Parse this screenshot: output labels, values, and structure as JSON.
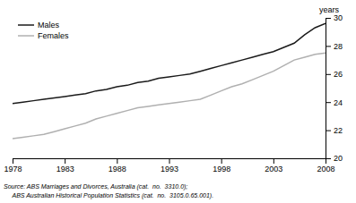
{
  "chart_data": {
    "type": "line",
    "ylabel": "years",
    "annotations": [
      "Source: ABS Marriages and Divorces, Australia (cat.  no.  3310.0);",
      "     ABS Australian Historical Population Statistics (cat.  no.  3105.0.65.001)."
    ],
    "x": [
      1978,
      1979,
      1980,
      1981,
      1982,
      1983,
      1984,
      1985,
      1986,
      1987,
      1988,
      1989,
      1990,
      1991,
      1992,
      1993,
      1994,
      1995,
      1996,
      1997,
      1998,
      1999,
      2000,
      2001,
      2002,
      2003,
      2004,
      2005,
      2006,
      2007,
      2008
    ],
    "series": [
      {
        "name": "Males",
        "color": "#1a1a1a",
        "values": [
          23.9,
          24.0,
          24.1,
          24.2,
          24.3,
          24.4,
          24.5,
          24.6,
          24.8,
          24.9,
          25.1,
          25.2,
          25.4,
          25.5,
          25.7,
          25.8,
          25.9,
          26.0,
          26.2,
          26.4,
          26.6,
          26.8,
          27.0,
          27.2,
          27.4,
          27.6,
          27.9,
          28.2,
          28.8,
          29.3,
          29.6
        ]
      },
      {
        "name": "Females",
        "color": "#b0b0b0",
        "values": [
          21.4,
          21.5,
          21.6,
          21.7,
          21.9,
          22.1,
          22.3,
          22.5,
          22.8,
          23.0,
          23.2,
          23.4,
          23.6,
          23.7,
          23.8,
          23.9,
          24.0,
          24.1,
          24.2,
          24.5,
          24.8,
          25.1,
          25.3,
          25.6,
          25.9,
          26.2,
          26.6,
          27.0,
          27.2,
          27.4,
          27.5
        ]
      }
    ],
    "xlim": [
      1978,
      2008
    ],
    "ylim": [
      20,
      30
    ],
    "xticks": [
      1978,
      1983,
      1988,
      1993,
      1998,
      2003,
      2008
    ],
    "yticks": [
      20,
      22,
      24,
      26,
      28,
      30
    ],
    "legend": "upper left",
    "grid": false
  }
}
